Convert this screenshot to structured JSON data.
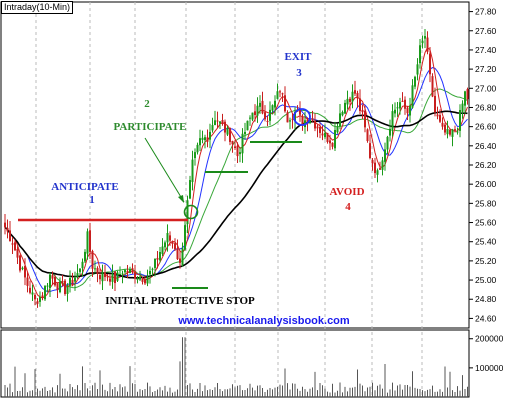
{
  "chart_label": "Intraday(10-Min)",
  "watermark": "www.technicalanalysisbook.com",
  "annotations": {
    "anticipate": {
      "label": "ANTICIPATE",
      "number": "1",
      "color": "#2233cc"
    },
    "participate": {
      "label": "PARTICIPATE",
      "number": "2",
      "color": "#2e8b2e"
    },
    "exit": {
      "label": "EXIT",
      "number": "3",
      "color": "#2233cc"
    },
    "avoid": {
      "label": "AVOID",
      "number": "4",
      "color": "#d42020"
    },
    "stop": {
      "label": "INITIAL PROTECTIVE STOP",
      "color": "#000000"
    }
  },
  "colors": {
    "up_candle": "#1a9a1a",
    "down_candle": "#c81e1e",
    "ma_short": "#2233ff",
    "ma_mid": "#d42020",
    "ma_green": "#3aa83a",
    "ma_long": "#000000",
    "resistance_line": "#d42020",
    "support_lines": "#1a8a1a",
    "volume": "#555555"
  },
  "chart_data": {
    "type": "line",
    "title": "Intraday(10-Min)",
    "price_axis": {
      "ylim": [
        24.5,
        27.9
      ],
      "ticks": [
        "24.60",
        "24.80",
        "25.00",
        "25.20",
        "25.40",
        "25.60",
        "25.80",
        "26.00",
        "26.20",
        "26.40",
        "26.60",
        "26.80",
        "27.00",
        "27.20",
        "27.40",
        "27.60",
        "27.80"
      ]
    },
    "volume_axis": {
      "ylim": [
        0,
        230000
      ],
      "ticks": [
        "100000",
        "200000"
      ]
    },
    "anchors": [
      {
        "i": 0,
        "p": 25.55
      },
      {
        "i": 3,
        "p": 25.4
      },
      {
        "i": 6,
        "p": 25.15
      },
      {
        "i": 9,
        "p": 24.95
      },
      {
        "i": 12,
        "p": 24.78
      },
      {
        "i": 15,
        "p": 24.85
      },
      {
        "i": 18,
        "p": 25.05
      },
      {
        "i": 21,
        "p": 24.95
      },
      {
        "i": 24,
        "p": 24.9
      },
      {
        "i": 27,
        "p": 25.0
      },
      {
        "i": 30,
        "p": 25.1
      },
      {
        "i": 33,
        "p": 25.45
      },
      {
        "i": 35,
        "p": 25.15
      },
      {
        "i": 38,
        "p": 25.05
      },
      {
        "i": 41,
        "p": 25.05
      },
      {
        "i": 44,
        "p": 25.0
      },
      {
        "i": 47,
        "p": 25.1
      },
      {
        "i": 50,
        "p": 25.08
      },
      {
        "i": 53,
        "p": 25.05
      },
      {
        "i": 56,
        "p": 25.02
      },
      {
        "i": 59,
        "p": 25.1
      },
      {
        "i": 62,
        "p": 25.3
      },
      {
        "i": 65,
        "p": 25.45
      },
      {
        "i": 68,
        "p": 25.35
      },
      {
        "i": 70,
        "p": 25.15
      },
      {
        "i": 72,
        "p": 25.6
      },
      {
        "i": 75,
        "p": 26.2
      },
      {
        "i": 78,
        "p": 26.45
      },
      {
        "i": 81,
        "p": 26.5
      },
      {
        "i": 84,
        "p": 26.7
      },
      {
        "i": 87,
        "p": 26.6
      },
      {
        "i": 90,
        "p": 26.5
      },
      {
        "i": 93,
        "p": 26.3
      },
      {
        "i": 96,
        "p": 26.55
      },
      {
        "i": 99,
        "p": 26.75
      },
      {
        "i": 102,
        "p": 26.8
      },
      {
        "i": 105,
        "p": 26.7
      },
      {
        "i": 108,
        "p": 26.85
      },
      {
        "i": 110,
        "p": 27.0
      },
      {
        "i": 113,
        "p": 26.7
      },
      {
        "i": 116,
        "p": 26.75
      },
      {
        "i": 119,
        "p": 26.65
      },
      {
        "i": 122,
        "p": 26.7
      },
      {
        "i": 125,
        "p": 26.6
      },
      {
        "i": 128,
        "p": 26.5
      },
      {
        "i": 131,
        "p": 26.45
      },
      {
        "i": 134,
        "p": 26.75
      },
      {
        "i": 137,
        "p": 26.9
      },
      {
        "i": 140,
        "p": 26.95
      },
      {
        "i": 143,
        "p": 26.7
      },
      {
        "i": 146,
        "p": 26.3
      },
      {
        "i": 149,
        "p": 26.1
      },
      {
        "i": 152,
        "p": 26.4
      },
      {
        "i": 155,
        "p": 26.75
      },
      {
        "i": 158,
        "p": 26.85
      },
      {
        "i": 161,
        "p": 26.75
      },
      {
        "i": 164,
        "p": 27.1
      },
      {
        "i": 166,
        "p": 27.4
      },
      {
        "i": 168,
        "p": 27.55
      },
      {
        "i": 170,
        "p": 27.1
      },
      {
        "i": 172,
        "p": 26.75
      },
      {
        "i": 175,
        "p": 26.55
      },
      {
        "i": 178,
        "p": 26.5
      },
      {
        "i": 181,
        "p": 26.6
      },
      {
        "i": 184,
        "p": 26.95
      },
      {
        "i": 185,
        "p": 26.9
      }
    ],
    "candle_count": 186
  }
}
